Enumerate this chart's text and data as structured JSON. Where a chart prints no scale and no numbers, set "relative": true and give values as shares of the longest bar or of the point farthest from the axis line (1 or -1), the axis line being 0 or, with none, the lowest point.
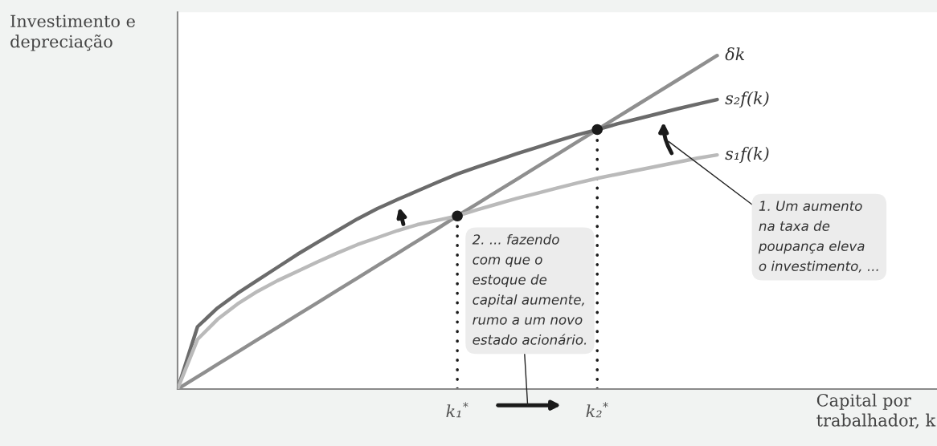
{
  "chart_data": {
    "type": "line",
    "relative": true,
    "xlabel": "Capital por\ntrabalhador, k",
    "ylabel": "Investimento e\ndepreciação",
    "categories": [
      null,
      null,
      null,
      null,
      null,
      null,
      null,
      null,
      null,
      null,
      null,
      null,
      null,
      null,
      "k₁$^{*}$",
      null,
      null,
      null,
      null,
      null,
      null,
      "k₂$^{*}$",
      null,
      null,
      null,
      null,
      null,
      null,
      null,
      null,
      null,
      null,
      null,
      null,
      null,
      null,
      null,
      null,
      null
    ],
    "series": [
      {
        "name": "δk",
        "color": "#8f8f8f",
        "values": [
          0,
          0.037,
          0.074,
          0.111,
          0.148,
          0.185,
          0.222,
          0.259,
          0.296,
          0.333,
          0.37,
          0.407,
          0.444,
          0.481,
          0.519,
          0.556,
          0.593,
          0.63,
          0.667,
          0.704,
          0.741,
          0.778,
          0.815,
          0.852,
          0.889,
          0.926,
          0.963,
          1,
          null,
          null,
          null,
          null,
          null,
          null,
          null,
          null,
          null,
          null,
          null
        ]
      },
      {
        "name": "s₂f(k)",
        "color": "#6b6b6b",
        "values": [
          0,
          0.187,
          0.243,
          0.287,
          0.326,
          0.365,
          0.404,
          0.44,
          0.475,
          0.51,
          0.541,
          0.568,
          0.594,
          0.62,
          0.645,
          0.666,
          0.686,
          0.706,
          0.725,
          0.744,
          0.762,
          0.778,
          0.795,
          0.81,
          0.825,
          0.84,
          0.854,
          0.868,
          null,
          null,
          null,
          null,
          null,
          null,
          null,
          null,
          null,
          null,
          null
        ]
      },
      {
        "name": "s₁f(k)",
        "color": "#bababa",
        "values": [
          0,
          0.149,
          0.209,
          0.255,
          0.293,
          0.325,
          0.353,
          0.381,
          0.408,
          0.433,
          0.454,
          0.475,
          0.493,
          0.506,
          0.519,
          0.538,
          0.555,
          0.572,
          0.587,
          0.603,
          0.618,
          0.632,
          0.644,
          0.656,
          0.668,
          0.68,
          0.692,
          0.702,
          null,
          null,
          null,
          null,
          null,
          null,
          null,
          null,
          null,
          null,
          null
        ]
      },
      {
        "type": "lollipop",
        "color": "#1a1a1a",
        "marker": "circle",
        "line_style": "dotted",
        "values": [
          null,
          null,
          null,
          null,
          null,
          null,
          null,
          null,
          null,
          null,
          null,
          null,
          null,
          null,
          0.519,
          null,
          null,
          null,
          null,
          null,
          null,
          0.778,
          null,
          null,
          null,
          null,
          null,
          null,
          null,
          null,
          null,
          null,
          null,
          null,
          null,
          null,
          null,
          null,
          null
        ]
      }
    ],
    "annotations": [
      "1. Um aumento\nna taxa de\npoupança eleva\no investimento, ...",
      "2. ... fazendo\ncom que o\nestoque de\ncapital aumente,\nrumo a um novo\nestado acionário."
    ]
  }
}
